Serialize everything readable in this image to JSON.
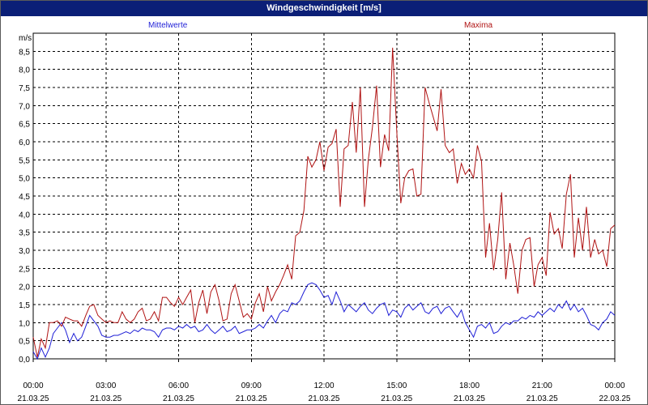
{
  "window": {
    "title": "Windgeschwindigkeit [m/s]"
  },
  "chart_data": {
    "type": "line",
    "title": "Windgeschwindigkeit [m/s]",
    "ylabel": "m/s",
    "ylim": [
      0,
      9
    ],
    "y_ticks": [
      "0,0",
      "0,5",
      "1,0",
      "1,5",
      "2,0",
      "2,5",
      "3,0",
      "3,5",
      "4,0",
      "4,5",
      "5,0",
      "5,5",
      "6,0",
      "6,5",
      "7,0",
      "7,5",
      "8,0",
      "8,5"
    ],
    "x_ticks": [
      {
        "time": "00:00",
        "date": "21.03.25"
      },
      {
        "time": "03:00",
        "date": "21.03.25"
      },
      {
        "time": "06:00",
        "date": "21.03.25"
      },
      {
        "time": "09:00",
        "date": "21.03.25"
      },
      {
        "time": "12:00",
        "date": "21.03.25"
      },
      {
        "time": "15:00",
        "date": "21.03.25"
      },
      {
        "time": "18:00",
        "date": "21.03.25"
      },
      {
        "time": "21:00",
        "date": "21.03.25"
      },
      {
        "time": "00:00",
        "date": "22.03.25"
      }
    ],
    "x_unit": "hours",
    "xlim": [
      0,
      24
    ],
    "grid": true,
    "series": [
      {
        "name": "Mittelwerte",
        "color": "#1f1fd6",
        "points": [
          [
            0,
            0.2
          ],
          [
            0.17,
            0
          ],
          [
            0.33,
            0.3
          ],
          [
            0.5,
            0.05
          ],
          [
            0.67,
            0.3
          ],
          [
            0.83,
            0.7
          ],
          [
            1,
            0.85
          ],
          [
            1.17,
            1
          ],
          [
            1.33,
            0.8
          ],
          [
            1.5,
            0.45
          ],
          [
            1.67,
            0.7
          ],
          [
            1.83,
            0.5
          ],
          [
            2,
            0.6
          ],
          [
            2.17,
            0.9
          ],
          [
            2.33,
            1.2
          ],
          [
            2.5,
            1.05
          ],
          [
            2.67,
            0.9
          ],
          [
            2.83,
            0.65
          ],
          [
            3,
            0.6
          ],
          [
            3.17,
            0.6
          ],
          [
            3.33,
            0.65
          ],
          [
            3.5,
            0.65
          ],
          [
            3.67,
            0.7
          ],
          [
            3.83,
            0.75
          ],
          [
            4,
            0.7
          ],
          [
            4.17,
            0.8
          ],
          [
            4.33,
            0.75
          ],
          [
            4.5,
            0.85
          ],
          [
            4.67,
            0.8
          ],
          [
            4.83,
            0.8
          ],
          [
            5,
            0.75
          ],
          [
            5.17,
            0.6
          ],
          [
            5.33,
            0.8
          ],
          [
            5.5,
            0.85
          ],
          [
            5.67,
            0.85
          ],
          [
            5.83,
            0.8
          ],
          [
            6,
            0.9
          ],
          [
            6.17,
            0.85
          ],
          [
            6.33,
            0.95
          ],
          [
            6.5,
            0.85
          ],
          [
            6.67,
            0.9
          ],
          [
            6.83,
            0.75
          ],
          [
            7,
            0.8
          ],
          [
            7.17,
            0.95
          ],
          [
            7.33,
            0.8
          ],
          [
            7.5,
            0.7
          ],
          [
            7.67,
            0.8
          ],
          [
            7.83,
            0.9
          ],
          [
            8,
            0.75
          ],
          [
            8.17,
            0.8
          ],
          [
            8.33,
            0.9
          ],
          [
            8.5,
            0.7
          ],
          [
            8.67,
            0.75
          ],
          [
            8.83,
            0.8
          ],
          [
            9,
            0.8
          ],
          [
            9.17,
            0.85
          ],
          [
            9.33,
            0.95
          ],
          [
            9.5,
            0.85
          ],
          [
            9.67,
            1.05
          ],
          [
            9.83,
            1.2
          ],
          [
            10,
            1.0
          ],
          [
            10.17,
            1.25
          ],
          [
            10.33,
            1.35
          ],
          [
            10.5,
            1.3
          ],
          [
            10.67,
            1.55
          ],
          [
            10.83,
            1.5
          ],
          [
            11,
            1.6
          ],
          [
            11.17,
            1.85
          ],
          [
            11.33,
            2.05
          ],
          [
            11.5,
            2.1
          ],
          [
            11.67,
            2.05
          ],
          [
            11.83,
            1.9
          ],
          [
            12,
            1.7
          ],
          [
            12.17,
            1.75
          ],
          [
            12.33,
            1.5
          ],
          [
            12.5,
            1.85
          ],
          [
            12.67,
            1.6
          ],
          [
            12.83,
            1.3
          ],
          [
            13,
            1.5
          ],
          [
            13.17,
            1.4
          ],
          [
            13.33,
            1.3
          ],
          [
            13.5,
            1.45
          ],
          [
            13.67,
            1.55
          ],
          [
            13.83,
            1.35
          ],
          [
            14,
            1.25
          ],
          [
            14.17,
            1.4
          ],
          [
            14.33,
            1.5
          ],
          [
            14.5,
            1.55
          ],
          [
            14.67,
            1.2
          ],
          [
            14.83,
            1.35
          ],
          [
            15,
            1.3
          ],
          [
            15.17,
            1.15
          ],
          [
            15.33,
            1.4
          ],
          [
            15.5,
            1.5
          ],
          [
            15.67,
            1.35
          ],
          [
            15.83,
            1.45
          ],
          [
            16,
            1.55
          ],
          [
            16.17,
            1.3
          ],
          [
            16.33,
            1.25
          ],
          [
            16.5,
            1.4
          ],
          [
            16.67,
            1.45
          ],
          [
            16.83,
            1.25
          ],
          [
            17,
            1.4
          ],
          [
            17.17,
            1.45
          ],
          [
            17.33,
            1.3
          ],
          [
            17.5,
            1.15
          ],
          [
            17.67,
            1.35
          ],
          [
            17.83,
            1.0
          ],
          [
            18,
            0.8
          ],
          [
            18.17,
            0.6
          ],
          [
            18.33,
            0.9
          ],
          [
            18.5,
            0.95
          ],
          [
            18.67,
            0.85
          ],
          [
            18.83,
            1.0
          ],
          [
            19,
            0.7
          ],
          [
            19.17,
            0.75
          ],
          [
            19.33,
            0.9
          ],
          [
            19.5,
            1.0
          ],
          [
            19.67,
            0.95
          ],
          [
            19.83,
            1.05
          ],
          [
            20,
            1.05
          ],
          [
            20.17,
            1.15
          ],
          [
            20.33,
            1.1
          ],
          [
            20.5,
            1.2
          ],
          [
            20.67,
            1.15
          ],
          [
            20.83,
            1.3
          ],
          [
            21,
            1.2
          ],
          [
            21.17,
            1.3
          ],
          [
            21.33,
            1.4
          ],
          [
            21.5,
            1.3
          ],
          [
            21.67,
            1.5
          ],
          [
            21.83,
            1.4
          ],
          [
            22,
            1.6
          ],
          [
            22.17,
            1.35
          ],
          [
            22.33,
            1.5
          ],
          [
            22.5,
            1.3
          ],
          [
            22.67,
            1.4
          ],
          [
            22.83,
            1.2
          ],
          [
            23,
            0.95
          ],
          [
            23.17,
            0.9
          ],
          [
            23.33,
            0.8
          ],
          [
            23.5,
            1.0
          ],
          [
            23.67,
            1.1
          ],
          [
            23.83,
            1.3
          ],
          [
            24,
            1.2
          ]
        ]
      },
      {
        "name": "Maxima",
        "color": "#b01313",
        "points": [
          [
            0,
            0.6
          ],
          [
            0.17,
            0.05
          ],
          [
            0.33,
            0.55
          ],
          [
            0.5,
            0.3
          ],
          [
            0.67,
            1.0
          ],
          [
            0.83,
            1.0
          ],
          [
            1,
            1.05
          ],
          [
            1.17,
            0.9
          ],
          [
            1.33,
            1.15
          ],
          [
            1.5,
            1.1
          ],
          [
            1.67,
            1.05
          ],
          [
            1.83,
            1.05
          ],
          [
            2,
            0.9
          ],
          [
            2.17,
            1.2
          ],
          [
            2.33,
            1.45
          ],
          [
            2.5,
            1.5
          ],
          [
            2.67,
            1.2
          ],
          [
            2.83,
            1.1
          ],
          [
            3,
            1.0
          ],
          [
            3.17,
            1.05
          ],
          [
            3.33,
            1.0
          ],
          [
            3.5,
            1.0
          ],
          [
            3.67,
            1.3
          ],
          [
            3.83,
            1.1
          ],
          [
            4,
            1.0
          ],
          [
            4.17,
            1.1
          ],
          [
            4.33,
            1.3
          ],
          [
            4.5,
            1.4
          ],
          [
            4.67,
            1.05
          ],
          [
            4.83,
            1.1
          ],
          [
            5,
            1.3
          ],
          [
            5.17,
            1.05
          ],
          [
            5.33,
            1.7
          ],
          [
            5.5,
            1.7
          ],
          [
            5.67,
            1.55
          ],
          [
            5.83,
            1.45
          ],
          [
            6,
            1.7
          ],
          [
            6.17,
            1.5
          ],
          [
            6.33,
            1.7
          ],
          [
            6.5,
            1.9
          ],
          [
            6.67,
            1.0
          ],
          [
            6.83,
            1.55
          ],
          [
            7,
            1.9
          ],
          [
            7.17,
            1.25
          ],
          [
            7.33,
            1.85
          ],
          [
            7.5,
            2.05
          ],
          [
            7.67,
            1.6
          ],
          [
            7.83,
            1.05
          ],
          [
            8,
            1.1
          ],
          [
            8.17,
            1.8
          ],
          [
            8.33,
            2.05
          ],
          [
            8.5,
            1.6
          ],
          [
            8.67,
            1.15
          ],
          [
            8.83,
            1.25
          ],
          [
            9,
            1.1
          ],
          [
            9.17,
            1.55
          ],
          [
            9.33,
            1.8
          ],
          [
            9.5,
            1.3
          ],
          [
            9.67,
            2.0
          ],
          [
            9.83,
            1.6
          ],
          [
            10,
            1.85
          ],
          [
            10.17,
            2.05
          ],
          [
            10.33,
            2.3
          ],
          [
            10.5,
            2.6
          ],
          [
            10.67,
            2.2
          ],
          [
            10.83,
            3.4
          ],
          [
            11,
            3.5
          ],
          [
            11.17,
            4.1
          ],
          [
            11.33,
            5.6
          ],
          [
            11.5,
            5.3
          ],
          [
            11.67,
            5.5
          ],
          [
            11.83,
            6.0
          ],
          [
            12,
            5.2
          ],
          [
            12.17,
            5.85
          ],
          [
            12.33,
            5.95
          ],
          [
            12.5,
            6.35
          ],
          [
            12.67,
            4.2
          ],
          [
            12.83,
            5.8
          ],
          [
            13,
            5.9
          ],
          [
            13.17,
            7.1
          ],
          [
            13.33,
            5.7
          ],
          [
            13.5,
            7.5
          ],
          [
            13.67,
            4.2
          ],
          [
            13.83,
            5.5
          ],
          [
            14,
            6.4
          ],
          [
            14.17,
            7.55
          ],
          [
            14.33,
            5.3
          ],
          [
            14.5,
            6.2
          ],
          [
            14.67,
            5.75
          ],
          [
            14.83,
            8.6
          ],
          [
            15,
            6.3
          ],
          [
            15.17,
            4.3
          ],
          [
            15.33,
            5.0
          ],
          [
            15.5,
            5.2
          ],
          [
            15.67,
            5.25
          ],
          [
            15.83,
            4.5
          ],
          [
            16,
            4.55
          ],
          [
            16.17,
            7.5
          ],
          [
            16.33,
            7.1
          ],
          [
            16.5,
            6.7
          ],
          [
            16.67,
            6.3
          ],
          [
            16.83,
            7.45
          ],
          [
            17,
            5.9
          ],
          [
            17.17,
            5.7
          ],
          [
            17.33,
            5.8
          ],
          [
            17.5,
            4.85
          ],
          [
            17.67,
            5.4
          ],
          [
            17.83,
            5.1
          ],
          [
            18,
            5.25
          ],
          [
            18.17,
            5.0
          ],
          [
            18.33,
            5.9
          ],
          [
            18.5,
            5.45
          ],
          [
            18.67,
            2.8
          ],
          [
            18.83,
            3.75
          ],
          [
            19,
            2.45
          ],
          [
            19.17,
            3.3
          ],
          [
            19.33,
            4.6
          ],
          [
            19.5,
            2.2
          ],
          [
            19.67,
            3.2
          ],
          [
            19.83,
            2.6
          ],
          [
            20,
            1.8
          ],
          [
            20.17,
            3.0
          ],
          [
            20.33,
            3.3
          ],
          [
            20.5,
            3.35
          ],
          [
            20.67,
            2.0
          ],
          [
            20.83,
            2.6
          ],
          [
            21,
            2.8
          ],
          [
            21.17,
            2.3
          ],
          [
            21.33,
            4.05
          ],
          [
            21.5,
            3.45
          ],
          [
            21.67,
            3.6
          ],
          [
            21.83,
            3.05
          ],
          [
            22,
            4.55
          ],
          [
            22.17,
            5.1
          ],
          [
            22.33,
            2.8
          ],
          [
            22.5,
            3.9
          ],
          [
            22.67,
            3.0
          ],
          [
            22.83,
            4.2
          ],
          [
            23,
            2.8
          ],
          [
            23.17,
            3.3
          ],
          [
            23.33,
            2.9
          ],
          [
            23.5,
            3.0
          ],
          [
            23.67,
            2.55
          ],
          [
            23.83,
            3.6
          ],
          [
            24,
            3.7
          ]
        ]
      }
    ]
  }
}
